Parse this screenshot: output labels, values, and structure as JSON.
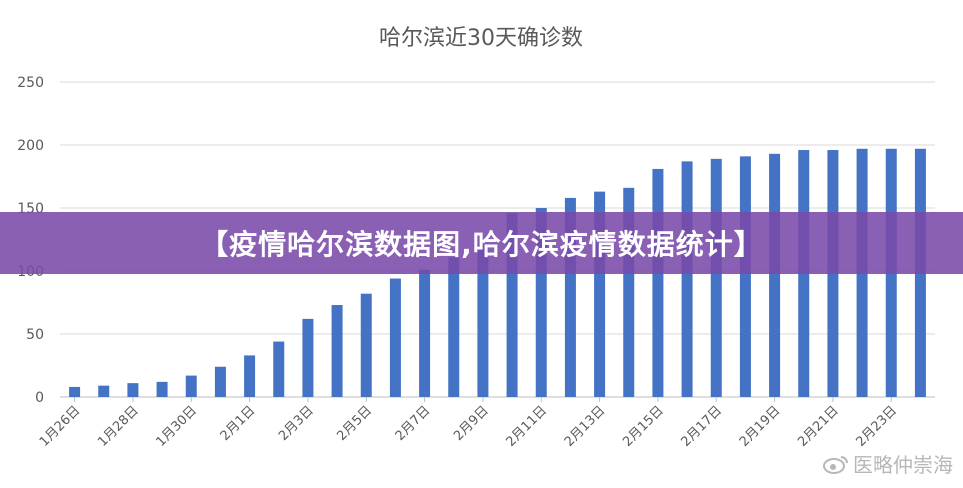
{
  "chart_data": {
    "type": "bar",
    "title": "哈尔滨近30天确诊数",
    "xlabel": "",
    "ylabel": "",
    "ylim": [
      0,
      250
    ],
    "yticks": [
      0,
      50,
      100,
      150,
      200,
      250
    ],
    "grid": true,
    "legend": "none",
    "bar_color": "#4472C4",
    "categories": [
      "1月26日",
      "1月27日",
      "1月28日",
      "1月29日",
      "1月30日",
      "1月31日",
      "2月1日",
      "2月2日",
      "2月3日",
      "2月4日",
      "2月5日",
      "2月6日",
      "2月7日",
      "2月8日",
      "2月9日",
      "2月10日",
      "2月11日",
      "2月12日",
      "2月13日",
      "2月14日",
      "2月15日",
      "2月16日",
      "2月17日",
      "2月18日",
      "2月19日",
      "2月20日",
      "2月21日",
      "2月22日",
      "2月23日",
      "2月24日"
    ],
    "visible_tick_labels": [
      "1月26日",
      "1月28日",
      "1月30日",
      "2月1日",
      "2月3日",
      "2月5日",
      "2月7日",
      "2月9日",
      "2月11日",
      "2月13日",
      "2月15日",
      "2月17日",
      "2月19日",
      "2月21日",
      "2月23日"
    ],
    "values": [
      8,
      9,
      11,
      12,
      17,
      24,
      33,
      44,
      62,
      73,
      82,
      94,
      101,
      111,
      121,
      146,
      150,
      158,
      163,
      166,
      181,
      187,
      189,
      191,
      193,
      196,
      196,
      197,
      197,
      197
    ]
  },
  "banner": {
    "text": "【疫情哈尔滨数据图,哈尔滨疫情数据统计】"
  },
  "watermark": {
    "text": "医略仲崇海",
    "icon": "weibo-icon"
  }
}
